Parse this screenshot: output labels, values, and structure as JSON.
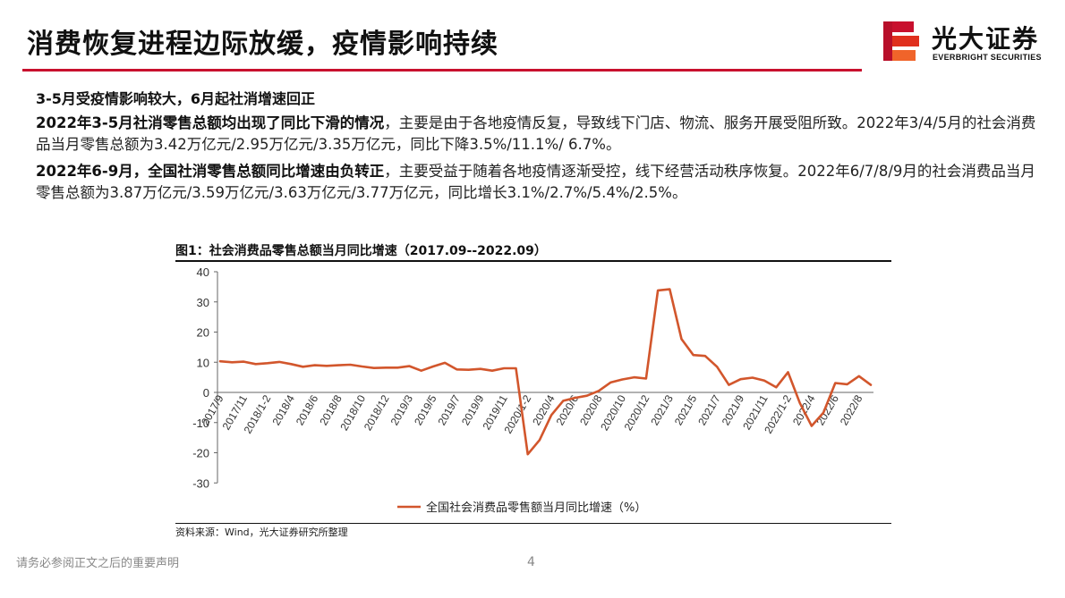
{
  "header": {
    "title": "消费恢复进程边际放缓，疫情影响持续",
    "brand_name": "光大证券",
    "brand_sub": "EVERBRIGHT SECURITIES"
  },
  "body": {
    "subhead": "3-5月受疫情影响较大，6月起社消增速回正",
    "para1_bold": "2022年3-5月社消零售总额均出现了同比下滑的情况",
    "para1_rest": "，主要是由于各地疫情反复，导致线下门店、物流、服务开展受阻所致。2022年3/4/5月的社会消费品当月零售总额为3.42万亿元/2.95万亿元/3.35万亿元，同比下降3.5%/11.1%/ 6.7%。",
    "para2_bold": "2022年6-9月，全国社消零售总额同比增速由负转正",
    "para2_rest": "，主要受益于随着各地疫情逐渐受控，线下经营活动秩序恢复。2022年6/7/8/9月的社会消费品当月零售总额为3.87万亿元/3.59万亿元/3.63万亿元/3.77万亿元，同比增长3.1%/2.7%/5.4%/2.5%。"
  },
  "figure": {
    "caption": "图1：社会消费品零售总额当月同比增速（2017.09--2022.09）",
    "source": "资料来源：Wind，光大证券研究所整理"
  },
  "footer": {
    "disclaimer": "请务必参阅正文之后的重要声明",
    "page_number": "4"
  },
  "colors": {
    "accent": "#c8102e",
    "series": "#d2562c"
  },
  "chart_data": {
    "type": "line",
    "title": "图1：社会消费品零售总额当月同比增速（2017.09--2022.09）",
    "xlabel": "",
    "ylabel": "",
    "ylim": [
      -30,
      40
    ],
    "yticks": [
      40,
      30,
      20,
      10,
      0,
      -10,
      -20,
      -30
    ],
    "grid": false,
    "legend_position": "bottom",
    "x_tick_labels": [
      "2017/9",
      "2017/11",
      "2018/1-2",
      "2018/4",
      "2018/6",
      "2018/8",
      "2018/10",
      "2018/12",
      "2019/3",
      "2019/5",
      "2019/7",
      "2019/9",
      "2019/11",
      "2020/1-2",
      "2020/4",
      "2020/6",
      "2020/8",
      "2020/10",
      "2020/12",
      "2021/3",
      "2021/5",
      "2021/7",
      "2021/9",
      "2021/11",
      "2022/1-2",
      "2022/4",
      "2022/6",
      "2022/8"
    ],
    "x": [
      "2017/9",
      "2017/10",
      "2017/11",
      "2017/12",
      "2018/1-2",
      "2018/3",
      "2018/4",
      "2018/5",
      "2018/6",
      "2018/7",
      "2018/8",
      "2018/9",
      "2018/10",
      "2018/11",
      "2018/12",
      "2019/1-2",
      "2019/3",
      "2019/4",
      "2019/5",
      "2019/6",
      "2019/7",
      "2019/8",
      "2019/9",
      "2019/10",
      "2019/11",
      "2019/12",
      "2020/1-2",
      "2020/3",
      "2020/4",
      "2020/5",
      "2020/6",
      "2020/7",
      "2020/8",
      "2020/9",
      "2020/10",
      "2020/11",
      "2020/12",
      "2021/1-2",
      "2021/3",
      "2021/4",
      "2021/5",
      "2021/6",
      "2021/7",
      "2021/8",
      "2021/9",
      "2021/10",
      "2021/11",
      "2021/12",
      "2022/1-2",
      "2022/3",
      "2022/4",
      "2022/5",
      "2022/6",
      "2022/7",
      "2022/8",
      "2022/9"
    ],
    "series": [
      {
        "name": "全国社会消费品零售额当月同比增速（%）",
        "color": "#d2562c",
        "values": [
          10.3,
          10.0,
          10.2,
          9.4,
          9.7,
          10.1,
          9.4,
          8.5,
          9.0,
          8.8,
          9.0,
          9.2,
          8.6,
          8.1,
          8.2,
          8.2,
          8.7,
          7.2,
          8.6,
          9.8,
          7.6,
          7.5,
          7.8,
          7.2,
          8.0,
          8.0,
          -20.5,
          -15.8,
          -7.5,
          -2.8,
          -1.8,
          -1.1,
          0.5,
          3.3,
          4.3,
          5.0,
          4.6,
          33.8,
          34.2,
          17.7,
          12.4,
          12.1,
          8.5,
          2.5,
          4.4,
          4.9,
          3.9,
          1.7,
          6.7,
          -3.5,
          -11.1,
          -6.7,
          3.1,
          2.7,
          5.4,
          2.5
        ]
      }
    ]
  }
}
